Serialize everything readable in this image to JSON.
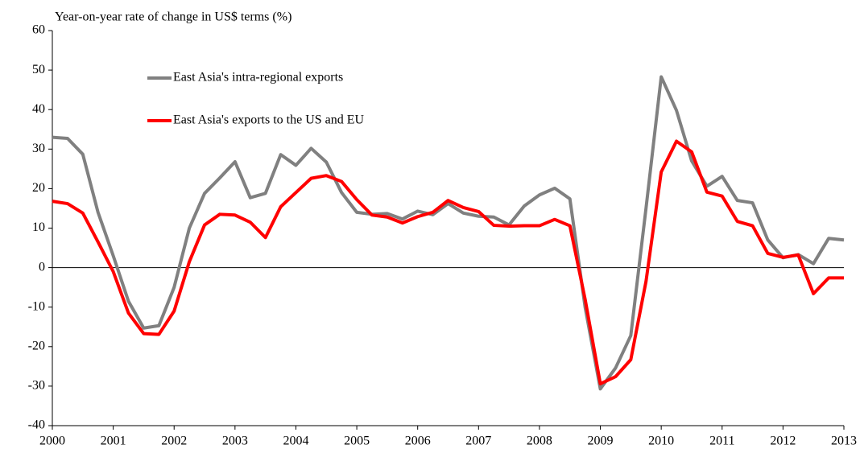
{
  "chart_data": {
    "type": "line",
    "title": "Year-on-year rate of change in US$ terms (%)",
    "x": [
      2000,
      2000.25,
      2000.5,
      2000.75,
      2001,
      2001.25,
      2001.5,
      2001.75,
      2002,
      2002.25,
      2002.5,
      2002.75,
      2003,
      2003.25,
      2003.5,
      2003.75,
      2004,
      2004.25,
      2004.5,
      2004.75,
      2005,
      2005.25,
      2005.5,
      2005.75,
      2006,
      2006.25,
      2006.5,
      2006.75,
      2007,
      2007.25,
      2007.5,
      2007.75,
      2008,
      2008.25,
      2008.5,
      2008.75,
      2009,
      2009.25,
      2009.5,
      2009.75,
      2010,
      2010.25,
      2010.5,
      2010.75,
      2011,
      2011.25,
      2011.5,
      2011.75,
      2012,
      2012.25,
      2012.5,
      2012.75,
      2013
    ],
    "series": [
      {
        "name": "East Asia's intra-regional exports",
        "color": "#808080",
        "values": [
          33,
          32.7,
          28.7,
          14,
          3,
          -8.5,
          -15.3,
          -14.7,
          -5,
          10,
          18.8,
          22.7,
          26.8,
          17.7,
          18.8,
          28.6,
          25.9,
          30.2,
          26.7,
          19,
          14,
          13.5,
          13.7,
          12.3,
          14.3,
          13.4,
          16.2,
          13.8,
          13,
          12.8,
          10.8,
          15.6,
          18.4,
          20.1,
          17.4,
          -10,
          -30.7,
          -25.4,
          -17.2,
          15,
          48.3,
          39.8,
          27,
          20.6,
          23.1,
          17,
          16.4,
          7,
          2.5,
          3.3,
          1,
          7.4,
          7
        ]
      },
      {
        "name": "East Asia's exports to the US and EU",
        "color": "#ff0000",
        "values": [
          16.8,
          16.2,
          13.8,
          6.5,
          -1,
          -11.5,
          -16.7,
          -16.9,
          -11,
          1.5,
          10.8,
          13.5,
          13.3,
          11.5,
          7.6,
          15.4,
          19,
          22.6,
          23.3,
          21.8,
          17.2,
          13.3,
          12.8,
          11.3,
          12.9,
          14,
          17,
          15.2,
          14.2,
          10.7,
          10.5,
          10.6,
          10.6,
          12.2,
          10.6,
          -8,
          -29.4,
          -27.6,
          -23.3,
          -3.5,
          24.2,
          32,
          29.3,
          19.1,
          18.1,
          11.7,
          10.6,
          3.6,
          2.6,
          3.2,
          -6.6,
          -2.6,
          -2.6
        ]
      }
    ],
    "xlim": [
      2000,
      2013
    ],
    "xticks": [
      2000,
      2001,
      2002,
      2003,
      2004,
      2005,
      2006,
      2007,
      2008,
      2009,
      2010,
      2011,
      2012,
      2013
    ],
    "ylim": [
      -40,
      60
    ],
    "yticks": [
      -40,
      -30,
      -20,
      -10,
      0,
      10,
      20,
      30,
      40,
      50,
      60
    ],
    "legend": "upper left"
  }
}
